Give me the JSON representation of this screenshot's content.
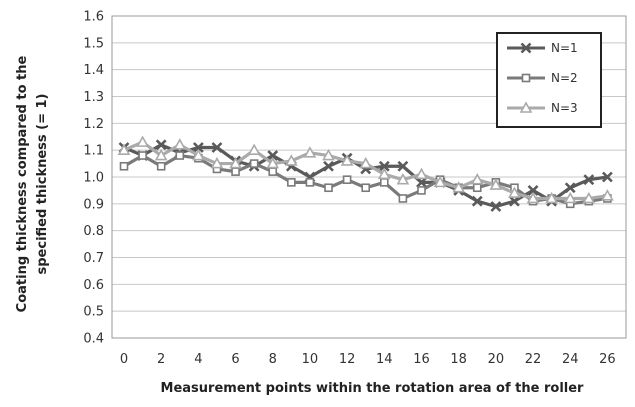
{
  "chart_data": {
    "type": "line",
    "x": [
      0,
      1,
      2,
      3,
      4,
      5,
      6,
      7,
      8,
      9,
      10,
      11,
      12,
      13,
      14,
      15,
      16,
      17,
      18,
      19,
      20,
      21,
      22,
      23,
      24,
      25,
      26
    ],
    "xlabel": "Measurement  points within the rotation area of the roller",
    "ylabel_line1": "Coating thickness compared to the",
    "ylabel_line2": "specified thickness  (= 1)",
    "ylim": [
      0.4,
      1.6
    ],
    "yticks": [
      "0.4",
      "0.5",
      "0.6",
      "0.7",
      "0.8",
      "0.9",
      "1.0",
      "1.1",
      "1.2",
      "1.3",
      "1.4",
      "1.5",
      "1.6"
    ],
    "xticks": [
      "0",
      "2",
      "4",
      "6",
      "8",
      "10",
      "12",
      "14",
      "16",
      "18",
      "20",
      "22",
      "24",
      "26"
    ],
    "grid": "horizontal",
    "legend_position": "top-right",
    "series": [
      {
        "name": "N=1",
        "color": "#5a5a5a",
        "marker": "x",
        "values": [
          1.11,
          1.08,
          1.12,
          1.09,
          1.11,
          1.11,
          1.06,
          1.04,
          1.08,
          1.04,
          1.0,
          1.04,
          1.07,
          1.03,
          1.04,
          1.04,
          0.98,
          0.98,
          0.95,
          0.91,
          0.89,
          0.91,
          0.95,
          0.91,
          0.96,
          0.99,
          1.0
        ]
      },
      {
        "name": "N=2",
        "color": "#7a7a7a",
        "marker": "square",
        "values": [
          1.04,
          1.08,
          1.04,
          1.08,
          1.07,
          1.03,
          1.02,
          1.05,
          1.02,
          0.98,
          0.98,
          0.96,
          0.99,
          0.96,
          0.98,
          0.92,
          0.95,
          0.99,
          0.96,
          0.96,
          0.98,
          0.96,
          0.91,
          0.92,
          0.9,
          0.91,
          0.92
        ]
      },
      {
        "name": "N=3",
        "color": "#aaaaaa",
        "marker": "triangle",
        "values": [
          1.1,
          1.13,
          1.08,
          1.12,
          1.08,
          1.05,
          1.05,
          1.1,
          1.05,
          1.06,
          1.09,
          1.08,
          1.06,
          1.05,
          1.01,
          0.99,
          1.01,
          0.98,
          0.96,
          0.99,
          0.97,
          0.94,
          0.92,
          0.92,
          0.92,
          0.92,
          0.93
        ]
      }
    ]
  }
}
